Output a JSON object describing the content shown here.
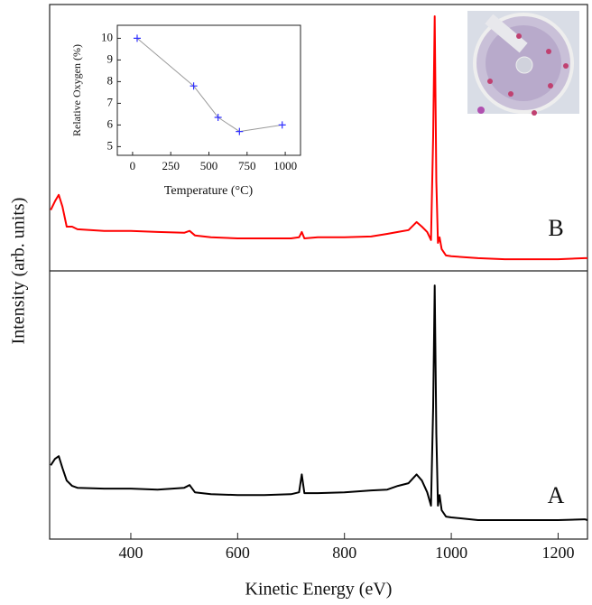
{
  "chart_data": [
    {
      "type": "stacked-panels",
      "xlabel": "Kinetic Energy (eV)",
      "ylabel": "Intensity  (arb. units)",
      "x": [
        250,
        258,
        265,
        272,
        280,
        290,
        300,
        350,
        400,
        450,
        500,
        510,
        520,
        550,
        600,
        650,
        700,
        715,
        720,
        725,
        750,
        800,
        850,
        880,
        900,
        920,
        935,
        945,
        955,
        962,
        966,
        969,
        972,
        975,
        978,
        982,
        990,
        1000,
        1050,
        1100,
        1150,
        1200,
        1250,
        1255
      ],
      "xlim": [
        248,
        1255
      ],
      "xticks": [
        400,
        600,
        800,
        1000,
        1200
      ],
      "series": [
        {
          "name": "B",
          "color": "#ff0000",
          "ylim": [
            0,
            100
          ],
          "values": [
            23.1,
            26.4,
            28.8,
            24.4,
            16.9,
            16.9,
            15.9,
            15.3,
            15.3,
            14.9,
            14.6,
            15.3,
            13.6,
            12.9,
            12.5,
            12.5,
            12.5,
            12.9,
            14.9,
            12.5,
            12.9,
            12.9,
            13.2,
            14.2,
            14.9,
            15.6,
            18.6,
            16.9,
            14.9,
            11.9,
            50.8,
            95.6,
            33.9,
            10.8,
            12.9,
            8.5,
            6.1,
            5.8,
            5.1,
            4.7,
            4.7,
            4.7,
            5.1,
            5.1
          ]
        },
        {
          "name": "A",
          "color": "#000000",
          "ylim": [
            0,
            100
          ],
          "values": [
            27.6,
            30.0,
            31.0,
            26.6,
            21.9,
            19.9,
            19.2,
            18.9,
            18.9,
            18.5,
            19.2,
            20.2,
            17.5,
            16.8,
            16.5,
            16.5,
            16.8,
            17.5,
            24.2,
            17.2,
            17.2,
            17.5,
            18.2,
            18.5,
            19.9,
            20.9,
            24.2,
            21.9,
            17.5,
            12.5,
            49.5,
            94.9,
            39.4,
            12.5,
            16.5,
            10.8,
            8.4,
            8.1,
            7.1,
            7.1,
            7.1,
            7.1,
            7.4,
            7.1
          ]
        }
      ]
    },
    {
      "type": "line",
      "xlabel": "Temperature (°C)",
      "ylabel": "Relative Oxygen (%)",
      "x": [
        30,
        400,
        560,
        700,
        980
      ],
      "values": [
        10,
        7.8,
        6.35,
        5.7,
        6
      ],
      "color": "#9a9a9a",
      "marker_color": "#3030ff",
      "xlim": [
        -100,
        1100
      ],
      "xticks": [
        0,
        250,
        500,
        750,
        1000
      ],
      "ylim": [
        4.6,
        10.6
      ],
      "yticks": [
        5,
        6,
        7,
        8,
        9,
        10
      ]
    }
  ]
}
